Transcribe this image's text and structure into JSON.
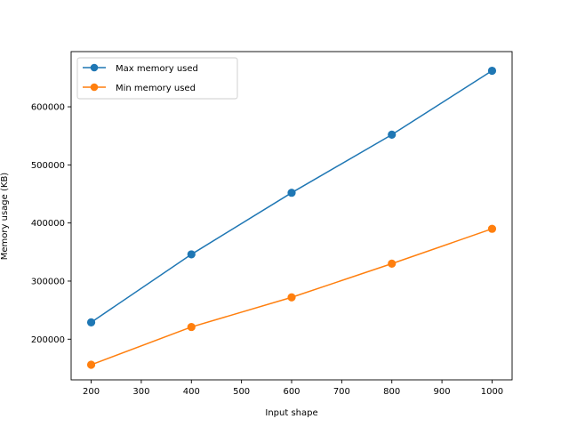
{
  "chart_data": {
    "type": "line",
    "title": "",
    "xlabel": "Input shape",
    "ylabel": "Memory usage (KB)",
    "xlim": [
      160,
      1040
    ],
    "ylim": [
      130000,
      695000
    ],
    "x_ticks": [
      200,
      300,
      400,
      500,
      600,
      700,
      800,
      900,
      1000
    ],
    "y_ticks": [
      200000,
      300000,
      400000,
      500000,
      600000
    ],
    "x": [
      200,
      400,
      600,
      800,
      1000
    ],
    "series": [
      {
        "name": "Max memory used",
        "color": "#1f77b4",
        "marker": "circle",
        "values": [
          229000,
          346000,
          452000,
          552000,
          662000
        ]
      },
      {
        "name": "Min memory used",
        "color": "#ff7f0e",
        "marker": "circle",
        "values": [
          156000,
          221000,
          272000,
          330000,
          390000
        ]
      }
    ],
    "grid": false,
    "legend": "top-left"
  }
}
